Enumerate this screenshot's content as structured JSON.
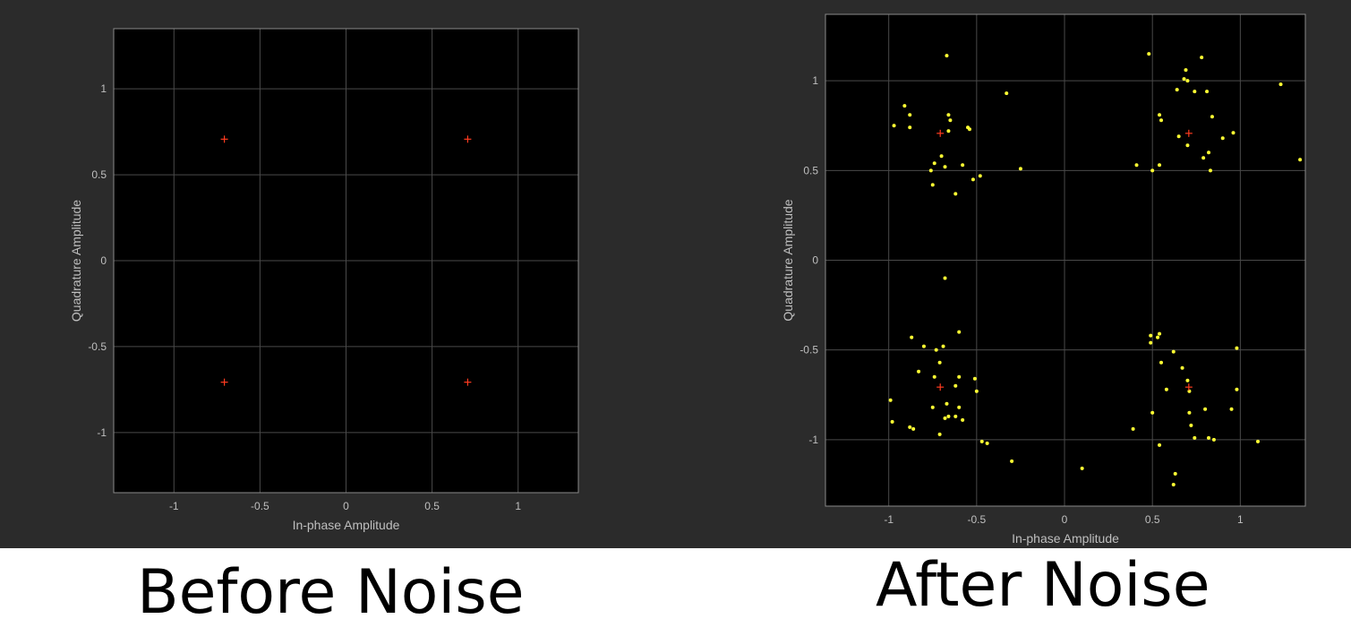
{
  "captions": {
    "before": "Before Noise",
    "after": "After Noise"
  },
  "colors": {
    "panel_bg": "#2b2b2b",
    "axes_bg": "#000000",
    "grid": "#4a4a4a",
    "axis_text": "#bfbfbf",
    "reference_marker": "#ff3b1f",
    "noisy_point": "#ffff33"
  },
  "chart_data": [
    {
      "type": "scatter",
      "title": "",
      "xlabel": "In-phase Amplitude",
      "ylabel": "Quadrature Amplitude",
      "xlim": [
        -1.35,
        1.35
      ],
      "ylim": [
        -1.35,
        1.35
      ],
      "xticks": [
        -1,
        -0.5,
        0,
        0.5,
        1
      ],
      "yticks": [
        -1,
        -0.5,
        0,
        0.5,
        1
      ],
      "xtick_labels": [
        "-1",
        "-0.5",
        "0",
        "0.5",
        "1"
      ],
      "ytick_labels": [
        "-1",
        "-0.5",
        "0",
        "0.5",
        "1"
      ],
      "grid": true,
      "series": [
        {
          "marker": "plus",
          "color": "#ff3b1f",
          "points": [
            [
              -0.707,
              0.707
            ],
            [
              0.707,
              0.707
            ],
            [
              -0.707,
              -0.707
            ],
            [
              0.707,
              -0.707
            ]
          ]
        }
      ]
    },
    {
      "type": "scatter",
      "title": "",
      "xlabel": "In-phase Amplitude",
      "ylabel": "Quadrature Amplitude",
      "xlim": [
        -1.36,
        1.37
      ],
      "ylim": [
        -1.37,
        1.37
      ],
      "xticks": [
        -1,
        -0.5,
        0,
        0.5,
        1
      ],
      "yticks": [
        -1,
        -0.5,
        0,
        0.5,
        1
      ],
      "xtick_labels": [
        "-1",
        "-0.5",
        "0",
        "0.5",
        "1"
      ],
      "ytick_labels": [
        "-1",
        "-0.5",
        "0",
        "0.5",
        "1"
      ],
      "grid": true,
      "series": [
        {
          "marker": "dot",
          "color": "#ffff33",
          "points": [
            [
              -0.97,
              0.75
            ],
            [
              -0.91,
              0.86
            ],
            [
              -0.88,
              0.81
            ],
            [
              -0.88,
              0.74
            ],
            [
              -0.67,
              1.14
            ],
            [
              -0.66,
              0.81
            ],
            [
              -0.65,
              0.78
            ],
            [
              -0.66,
              0.72
            ],
            [
              -0.55,
              0.74
            ],
            [
              -0.54,
              0.73
            ],
            [
              -0.33,
              0.93
            ],
            [
              -0.7,
              0.58
            ],
            [
              -0.68,
              0.52
            ],
            [
              -0.74,
              0.54
            ],
            [
              -0.76,
              0.5
            ],
            [
              -0.75,
              0.42
            ],
            [
              -0.62,
              0.37
            ],
            [
              -0.58,
              0.53
            ],
            [
              -0.52,
              0.45
            ],
            [
              -0.48,
              0.47
            ],
            [
              -0.25,
              0.51
            ],
            [
              0.48,
              1.15
            ],
            [
              0.64,
              0.95
            ],
            [
              0.68,
              1.01
            ],
            [
              0.69,
              1.06
            ],
            [
              0.7,
              1.0
            ],
            [
              0.74,
              0.94
            ],
            [
              0.78,
              1.13
            ],
            [
              0.81,
              0.94
            ],
            [
              0.54,
              0.81
            ],
            [
              0.55,
              0.78
            ],
            [
              0.65,
              0.69
            ],
            [
              0.7,
              0.64
            ],
            [
              0.84,
              0.8
            ],
            [
              0.9,
              0.68
            ],
            [
              0.96,
              0.71
            ],
            [
              0.82,
              0.6
            ],
            [
              0.79,
              0.57
            ],
            [
              0.83,
              0.5
            ],
            [
              0.41,
              0.53
            ],
            [
              0.5,
              0.5
            ],
            [
              0.54,
              0.53
            ],
            [
              1.23,
              0.98
            ],
            [
              1.34,
              0.56
            ],
            [
              -0.68,
              -0.1
            ],
            [
              -0.87,
              -0.43
            ],
            [
              -0.8,
              -0.48
            ],
            [
              -0.83,
              -0.62
            ],
            [
              -0.73,
              -0.5
            ],
            [
              -0.69,
              -0.48
            ],
            [
              -0.6,
              -0.4
            ],
            [
              -0.71,
              -0.57
            ],
            [
              -0.74,
              -0.65
            ],
            [
              -0.6,
              -0.65
            ],
            [
              -0.51,
              -0.66
            ],
            [
              -0.5,
              -0.73
            ],
            [
              -0.62,
              -0.7
            ],
            [
              -0.67,
              -0.8
            ],
            [
              -0.66,
              -0.87
            ],
            [
              -0.68,
              -0.88
            ],
            [
              -0.62,
              -0.87
            ],
            [
              -0.6,
              -0.82
            ],
            [
              -0.58,
              -0.89
            ],
            [
              -0.75,
              -0.82
            ],
            [
              -0.99,
              -0.78
            ],
            [
              -0.98,
              -0.9
            ],
            [
              -0.88,
              -0.93
            ],
            [
              -0.86,
              -0.94
            ],
            [
              -0.71,
              -0.97
            ],
            [
              -0.47,
              -1.01
            ],
            [
              -0.44,
              -1.02
            ],
            [
              -0.3,
              -1.12
            ],
            [
              0.1,
              -1.16
            ],
            [
              0.39,
              -0.94
            ],
            [
              0.49,
              -0.42
            ],
            [
              0.49,
              -0.46
            ],
            [
              0.53,
              -0.43
            ],
            [
              0.54,
              -0.41
            ],
            [
              0.55,
              -0.57
            ],
            [
              0.62,
              -0.51
            ],
            [
              0.58,
              -0.72
            ],
            [
              0.67,
              -0.6
            ],
            [
              0.7,
              -0.67
            ],
            [
              0.71,
              -0.73
            ],
            [
              0.71,
              -0.85
            ],
            [
              0.72,
              -0.92
            ],
            [
              0.74,
              -0.99
            ],
            [
              0.8,
              -0.83
            ],
            [
              0.82,
              -0.99
            ],
            [
              0.85,
              -1.0
            ],
            [
              0.95,
              -0.83
            ],
            [
              0.98,
              -0.72
            ],
            [
              0.98,
              -0.49
            ],
            [
              1.1,
              -1.01
            ],
            [
              0.5,
              -0.85
            ],
            [
              0.54,
              -1.03
            ],
            [
              0.63,
              -1.19
            ],
            [
              0.62,
              -1.25
            ]
          ]
        },
        {
          "marker": "plus",
          "color": "#ff3b1f",
          "points": [
            [
              -0.707,
              0.707
            ],
            [
              0.707,
              0.707
            ],
            [
              -0.707,
              -0.707
            ],
            [
              0.707,
              -0.707
            ]
          ]
        }
      ]
    }
  ]
}
